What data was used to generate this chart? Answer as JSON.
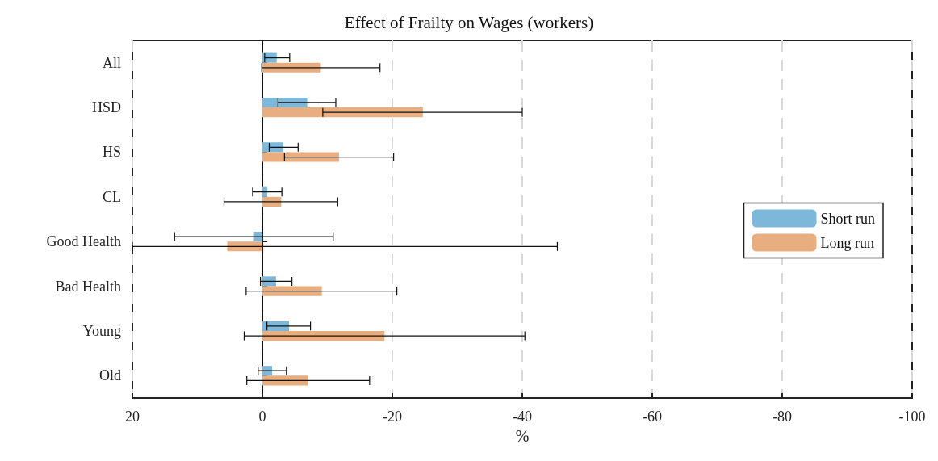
{
  "chart_data": {
    "type": "bar",
    "orientation": "horizontal",
    "title": "Effect of Frailty on Wages (workers)",
    "xlabel": "%",
    "categories": [
      "All",
      "HSD",
      "HS",
      "CL",
      "Good Health",
      "Bad Health",
      "Young",
      "Old"
    ],
    "series": [
      {
        "name": "Short run",
        "color": "#7db8da",
        "values": [
          -2.2,
          -6.9,
          -3.2,
          -0.75,
          1.3,
          -2.1,
          -4.1,
          -1.5
        ],
        "errors": [
          [
            -4.2,
            -0.35
          ],
          [
            -11.3,
            -2.4
          ],
          [
            -5.5,
            -1.05
          ],
          [
            -3.0,
            1.5
          ],
          [
            -10.9,
            13.5
          ],
          [
            -4.55,
            0.3
          ],
          [
            -7.4,
            -0.7
          ],
          [
            -3.7,
            0.65
          ]
        ]
      },
      {
        "name": "Long run",
        "color": "#e9ae80",
        "values": [
          -9.0,
          -24.7,
          -11.8,
          -2.9,
          5.4,
          -9.15,
          -18.8,
          -7.0
        ],
        "errors": [
          [
            -18.1,
            0.1
          ],
          [
            -40.0,
            -9.3
          ],
          [
            -20.2,
            -3.4
          ],
          [
            -11.6,
            5.9
          ],
          [
            -45.4,
            20
          ],
          [
            -20.7,
            2.5
          ],
          [
            -40.4,
            2.8
          ],
          [
            -16.5,
            2.4
          ]
        ]
      }
    ],
    "xlim": [
      20,
      -100
    ],
    "xticks": [
      20,
      0,
      -20,
      -40,
      -60,
      -80,
      -100
    ],
    "grid": "x",
    "legend": "right"
  }
}
